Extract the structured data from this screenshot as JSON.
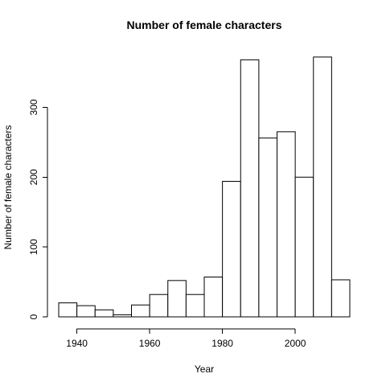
{
  "chart_data": {
    "type": "bar",
    "title": "Number of female characters",
    "xlabel": "Year",
    "ylabel": "Number of female characters",
    "xlim": [
      1935,
      2015
    ],
    "ylim": [
      0,
      370
    ],
    "bin_width": 5,
    "bins": [
      {
        "start": 1935,
        "end": 1940,
        "value": 20
      },
      {
        "start": 1940,
        "end": 1945,
        "value": 16
      },
      {
        "start": 1945,
        "end": 1950,
        "value": 10
      },
      {
        "start": 1950,
        "end": 1955,
        "value": 3
      },
      {
        "start": 1955,
        "end": 1960,
        "value": 17
      },
      {
        "start": 1960,
        "end": 1965,
        "value": 32
      },
      {
        "start": 1965,
        "end": 1970,
        "value": 52
      },
      {
        "start": 1970,
        "end": 1975,
        "value": 32
      },
      {
        "start": 1975,
        "end": 1980,
        "value": 57
      },
      {
        "start": 1980,
        "end": 1985,
        "value": 194
      },
      {
        "start": 1985,
        "end": 1990,
        "value": 368
      },
      {
        "start": 1990,
        "end": 1995,
        "value": 256
      },
      {
        "start": 1995,
        "end": 2000,
        "value": 265
      },
      {
        "start": 2000,
        "end": 2005,
        "value": 200
      },
      {
        "start": 2005,
        "end": 2010,
        "value": 372
      },
      {
        "start": 2010,
        "end": 2015,
        "value": 53
      }
    ],
    "x_ticks": [
      1940,
      1960,
      1980,
      2000
    ],
    "y_ticks": [
      0,
      100,
      200,
      300
    ],
    "grid": false,
    "legend": "none"
  }
}
